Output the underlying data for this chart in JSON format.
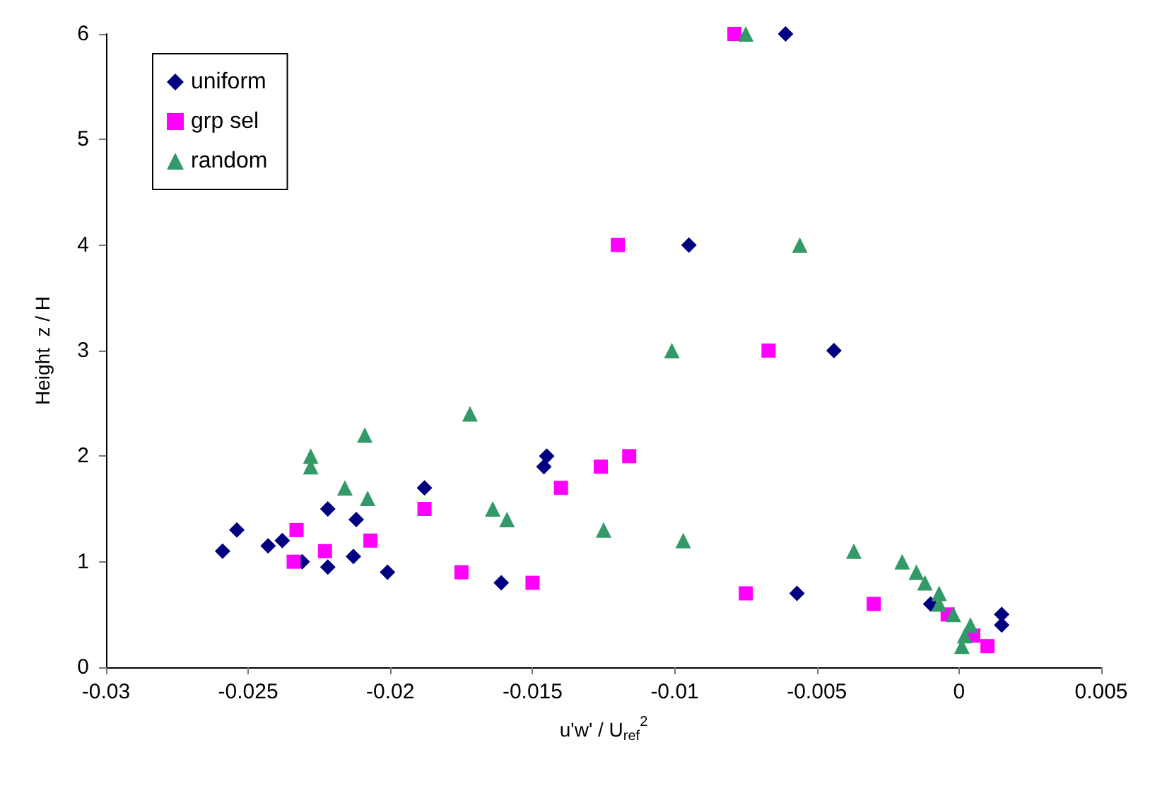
{
  "chart_data": {
    "type": "scatter",
    "xlabel": "u'w' / U$_{ref}$$^{2}$",
    "ylabel": "Height  z / H",
    "xlim": [
      -0.03,
      0.005
    ],
    "xticks": [
      -0.03,
      -0.025,
      -0.02,
      -0.015,
      -0.01,
      -0.005,
      0,
      0.005
    ],
    "ylim": [
      0,
      6
    ],
    "yticks": [
      0,
      1,
      2,
      3,
      4,
      5,
      6
    ],
    "grid": false,
    "legend": "top left",
    "series": [
      {
        "name": "uniform",
        "color": "#000080",
        "marker": "diamond",
        "x": [
          -0.0259,
          -0.0254,
          -0.0243,
          -0.0238,
          -0.0231,
          -0.0222,
          -0.0222,
          -0.0212,
          -0.0213,
          -0.0201,
          -0.0188,
          -0.0161,
          -0.0145,
          -0.0146,
          -0.0095,
          -0.0057,
          -0.0044,
          -0.0061,
          0.0015,
          0.0015,
          -0.001
        ],
        "values": [
          1.1,
          1.3,
          1.15,
          1.2,
          1.0,
          1.5,
          0.95,
          1.4,
          1.05,
          0.9,
          1.7,
          0.8,
          2.0,
          1.9,
          4.0,
          0.7,
          3.0,
          6.0,
          0.5,
          0.4,
          0.6
        ]
      },
      {
        "name": "grp sel",
        "color": "#ff00ff",
        "marker": "square",
        "x": [
          -0.0233,
          -0.0234,
          -0.0223,
          -0.0207,
          -0.0188,
          -0.0175,
          -0.015,
          -0.014,
          -0.0126,
          -0.0116,
          -0.012,
          -0.0075,
          -0.0067,
          -0.0079,
          -0.003,
          -0.0004,
          0.0005,
          0.001
        ],
        "values": [
          1.3,
          1.0,
          1.1,
          1.2,
          1.5,
          0.9,
          0.8,
          1.7,
          1.9,
          2.0,
          4.0,
          0.7,
          3.0,
          6.0,
          0.6,
          0.5,
          0.3,
          0.2
        ]
      },
      {
        "name": "random",
        "color": "#339966",
        "marker": "triangle",
        "x": [
          -0.0228,
          -0.0228,
          -0.0209,
          -0.0216,
          -0.0208,
          -0.0172,
          -0.0164,
          -0.0159,
          -0.0125,
          -0.0097,
          -0.0101,
          -0.0056,
          -0.0075,
          -0.0037,
          -0.002,
          -0.0015,
          -0.0012,
          -0.0007,
          -0.0007,
          -0.0002,
          0.0004,
          0.0002,
          0.0001
        ],
        "values": [
          2.0,
          1.9,
          2.2,
          1.7,
          1.6,
          2.4,
          1.5,
          1.4,
          1.3,
          1.2,
          3.0,
          4.0,
          6.0,
          1.1,
          1.0,
          0.9,
          0.8,
          0.7,
          0.6,
          0.5,
          0.4,
          0.3,
          0.2
        ]
      }
    ]
  }
}
